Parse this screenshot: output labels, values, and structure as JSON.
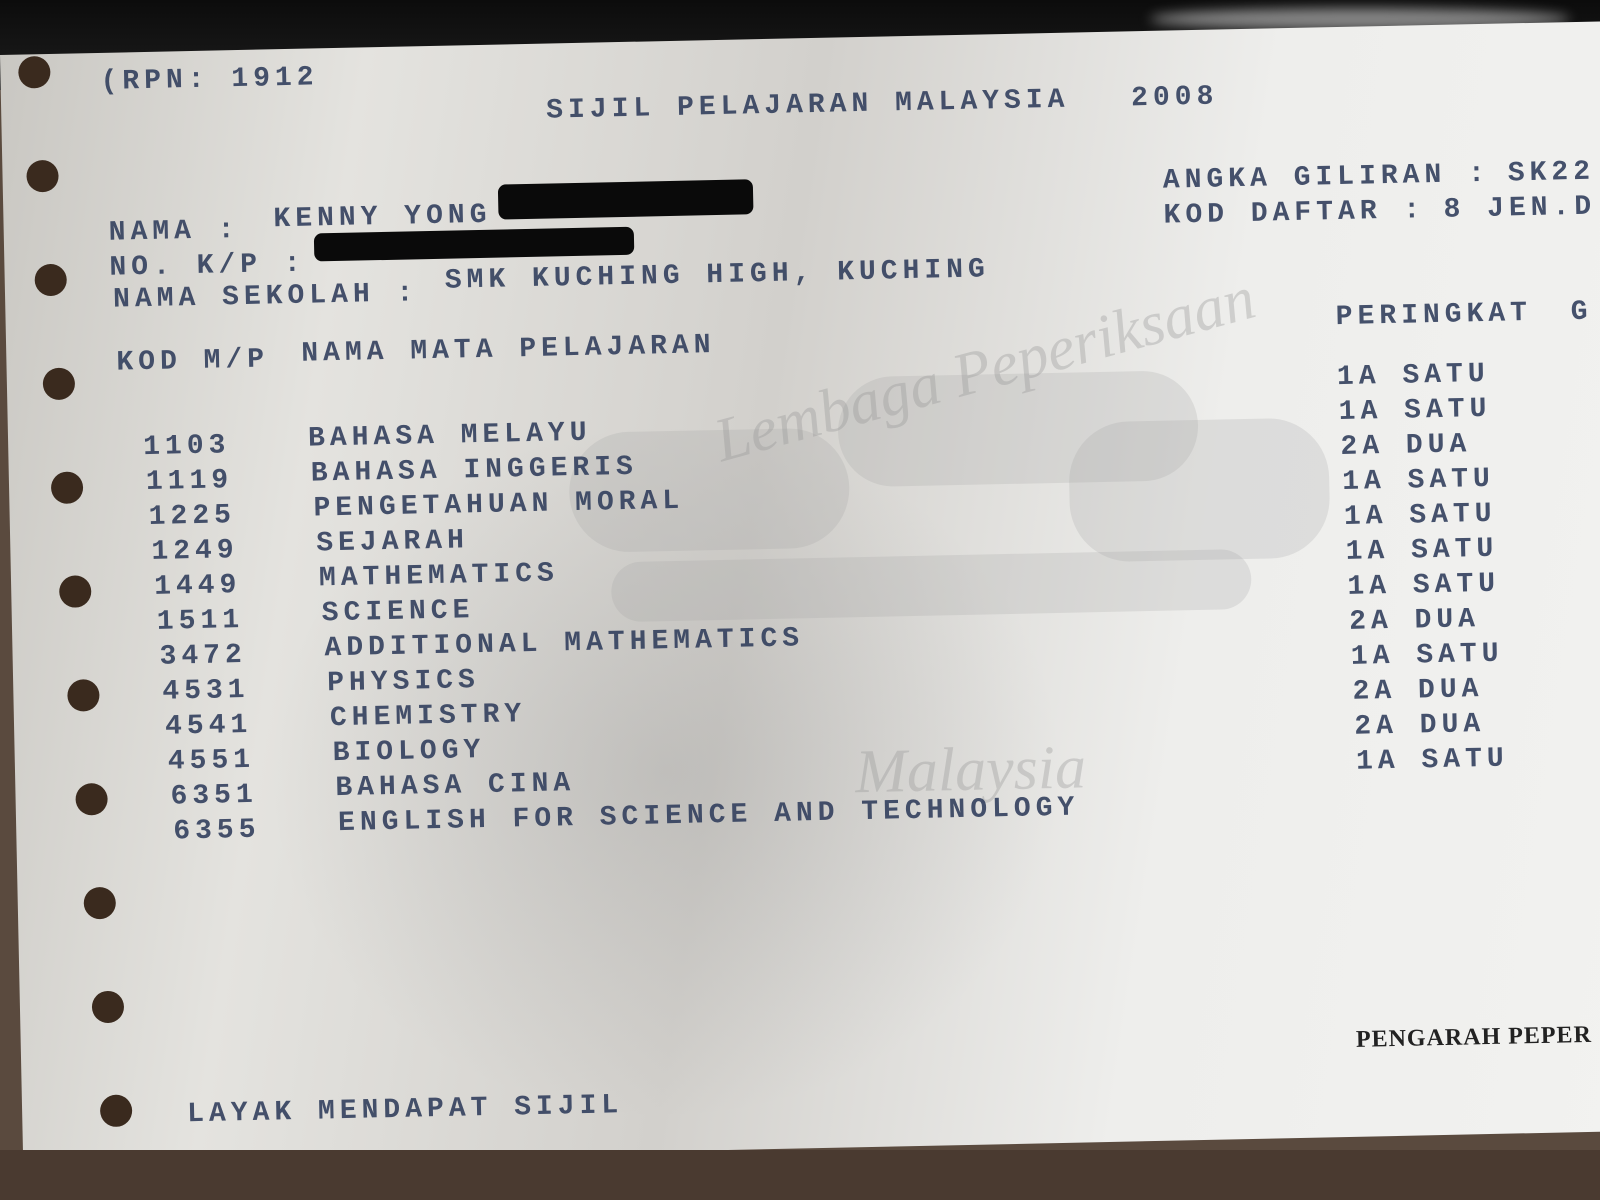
{
  "header": {
    "rpn": "(RPN: 1912",
    "title": "SIJIL PELAJARAN MALAYSIA",
    "year": "2008",
    "angka_giliran_label": "ANGKA GILIRAN :",
    "angka_giliran_value": "SK22",
    "kod_daftar_label": "KOD DAFTAR :",
    "kod_daftar_value": "8 JEN.D"
  },
  "candidate": {
    "nama_label": "NAMA :",
    "nama_value": "KENNY YONG",
    "kp_label": "NO. K/P :",
    "sekolah_label": "NAMA SEKOLAH :",
    "sekolah_value": "SMK KUCHING HIGH, KUCHING"
  },
  "table": {
    "col_code": "KOD M/P",
    "col_subject": "NAMA MATA PELAJARAN",
    "col_grade": "PERINGKAT",
    "col_grade_cut": "G",
    "subjects": [
      {
        "code": "1103",
        "name": "BAHASA MELAYU"
      },
      {
        "code": "1119",
        "name": "BAHASA INGGERIS"
      },
      {
        "code": "1225",
        "name": "PENGETAHUAN MORAL"
      },
      {
        "code": "1249",
        "name": "SEJARAH"
      },
      {
        "code": "1449",
        "name": "MATHEMATICS"
      },
      {
        "code": "1511",
        "name": "SCIENCE"
      },
      {
        "code": "3472",
        "name": "ADDITIONAL MATHEMATICS"
      },
      {
        "code": "4531",
        "name": "PHYSICS"
      },
      {
        "code": "4541",
        "name": "CHEMISTRY"
      },
      {
        "code": "4551",
        "name": "BIOLOGY"
      },
      {
        "code": "6351",
        "name": "BAHASA CINA"
      },
      {
        "code": "6355",
        "name": "ENGLISH FOR SCIENCE AND TECHNOLOGY"
      }
    ],
    "grades": [
      "1A SATU",
      "1A SATU",
      "2A DUA",
      "1A SATU",
      "1A SATU",
      "1A SATU",
      "1A SATU",
      "2A DUA",
      "1A SATU",
      "2A DUA",
      "2A DUA",
      "1A SATU"
    ]
  },
  "watermark": {
    "line1": "Lembaga Peperiksaan",
    "line2": "Malaysia"
  },
  "footer": {
    "signature": "PENGARAH PEPER",
    "result": "LAYAK MENDAPAT SIJIL"
  }
}
